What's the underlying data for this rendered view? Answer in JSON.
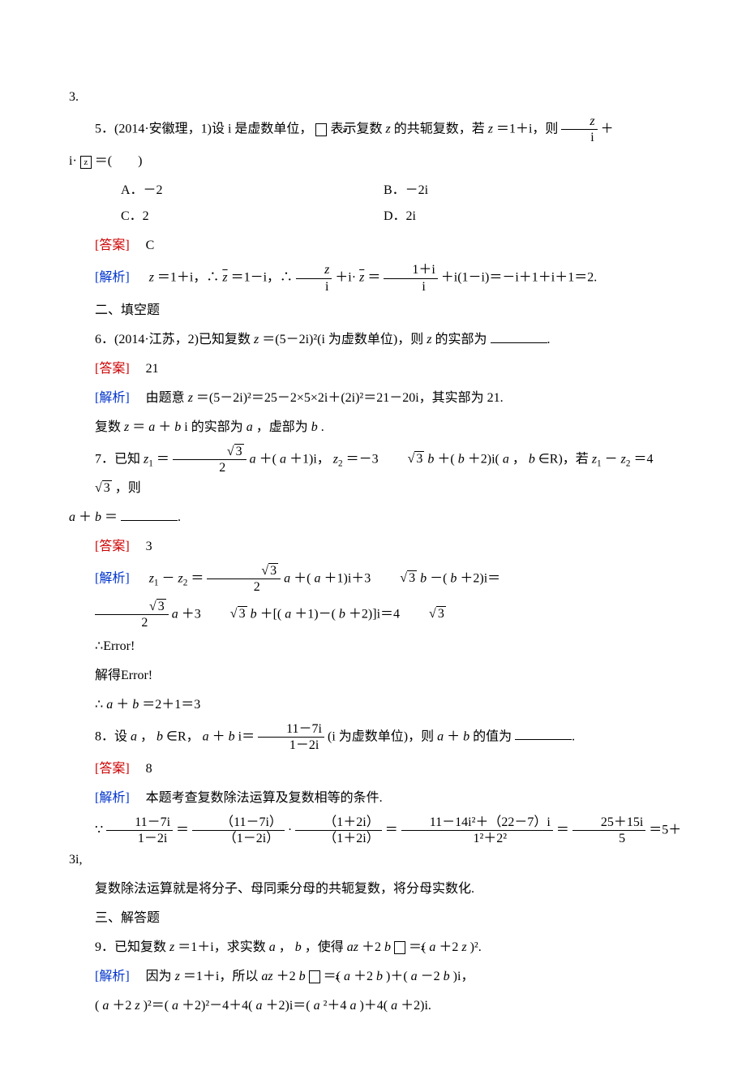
{
  "page_number": "3.",
  "q5": {
    "stem_a": "5．(2014·安徽理，1)设 i 是虚数单位，",
    "stem_b": "表示复数 ",
    "stem_c": " 的共轭复数，若 ",
    "stem_d": "＝1＋i，则",
    "stem_e": "＋",
    "stem_tail": "i·",
    "stem_tail2": "＝(　　)",
    "A": "A．－2",
    "B": "B．－2i",
    "C": "C．2",
    "D": "D．2i",
    "ans_label": "[答案]",
    "ans": "　C",
    "exp_label": "[解析]",
    "exp_a": "＝1＋i，∴",
    "exp_b": "＝1－i，∴",
    "exp_c": "＋i·",
    "exp_d": "＝",
    "exp_e": "＋i(1－i)＝－i＋1＋i＋1＝2."
  },
  "sec2": "二、填空题",
  "q6": {
    "stem": "6．(2014·江苏，2)已知复数 ",
    "stem2": "＝(5－2i)²(i 为虚数单位)，则 ",
    "stem3": " 的实部为",
    "ans_label": "[答案]",
    "ans": "　21",
    "exp_label": "[解析]",
    "exp": "　由题意 ",
    "exp2": "＝(5－2i)²＝25－2×5×2i＋(2i)²＝21－20i，其实部为 21.",
    "note": "复数 ",
    "note2": "＝",
    "note3": "＋",
    "note4": "i 的实部为 ",
    "note5": "，虚部为 ",
    "note6": "."
  },
  "q7": {
    "stem_a": "7．已知 ",
    "stem_b": "＝",
    "stem_c": "＋(",
    "stem_d": "＋1)i，",
    "stem_e": "＝－3",
    "stem_f": "＋(",
    "stem_g": "＋2)i(",
    "stem_h": "，",
    "stem_i": "∈R)，若 ",
    "stem_j": "－",
    "stem_k": "＝4",
    "stem_l": "，则",
    "cont": "＋",
    "cont2": "＝",
    "ans_label": "[答案]",
    "ans": "　3",
    "exp_label": "[解析]",
    "exp_a": "－",
    "exp_b": "＝",
    "exp_c": "＋(",
    "exp_d": "＋1)i＋3",
    "exp_e": "－(",
    "exp_f": "＋2)i＝",
    "line2_a": "＋3",
    "line2_b": "＋[(",
    "line2_c": "＋1)－(",
    "line2_d": "＋2)]i＝4",
    "err1": "∴",
    "err1b": "Error!",
    "err2": "解得",
    "err2b": "Error!",
    "fin": "∴",
    "fin2": "＋",
    "fin3": "＝2＋1＝3"
  },
  "q8": {
    "stem_a": "8．设 ",
    "stem_b": "，",
    "stem_c": "∈R，",
    "stem_d": "＋",
    "stem_e": "i＝",
    "stem_f": "(i 为虚数单位)，则 ",
    "stem_g": "＋",
    "stem_h": " 的值为",
    "ans_label": "[答案]",
    "ans": "　8",
    "exp_label": "[解析]",
    "exp": "　本题考查复数除法运算及复数相等的条件.",
    "calc_a": "∵",
    "calc_b": "＝",
    "calc_c": "＝",
    "calc_d": "＝",
    "calc_e": "＝5＋3i,",
    "note": "复数除法运算就是将分子、母同乘分母的共轭复数，将分母实数化."
  },
  "sec3": "三、解答题",
  "q9": {
    "stem_a": "9．已知复数 ",
    "stem_b": "＝1＋i，求实数 ",
    "stem_c": "，",
    "stem_d": "，使得 ",
    "stem_e": "＋2",
    "stem_f": "＝(",
    "stem_g": "＋2",
    "stem_h": ")².",
    "exp_label": "[解析]",
    "exp_a": "　因为 ",
    "exp_b": "＝1＋i，所以 ",
    "exp_c": "＋2",
    "exp_d": "＝(",
    "exp_e": "＋2",
    "exp_f": ")＋(",
    "exp_g": "－2",
    "exp_h": ")i，",
    "line2_a": "(",
    "line2_b": "＋2",
    "line2_c": ")²＝(",
    "line2_d": "＋2)²－4＋4(",
    "line2_e": "＋2)i＝(",
    "line2_f": "²＋4",
    "line2_g": ")＋4(",
    "line2_h": "＋2)i."
  },
  "frac": {
    "z_over_i_num": "z",
    "z_over_i_den": "i",
    "oneplus_i_num": "1＋i",
    "oneplus_i_den": "i",
    "rt3_num": "3",
    "rt3_den": "2",
    "elv7_num": "11－7i",
    "elv7_den": "1－2i",
    "oneplus2i_num": "1＋2i",
    "oneplus2i_den": "1＋2i",
    "big_num": "11－14i²＋（22－7）i",
    "big_den": "1²＋2²",
    "res_num": "25＋15i",
    "res_den": "5"
  },
  "vars": {
    "z": "z",
    "a": "a",
    "b": "b",
    "z1": "z",
    "z2": "z",
    "zbar": "z",
    "dot": "．"
  },
  "colors": {
    "red": "#cc0000",
    "blue": "#0033cc",
    "text": "#000000",
    "bg": "#ffffff"
  },
  "fonts": {
    "body_size_pt": 12,
    "line_height": 2.0
  }
}
